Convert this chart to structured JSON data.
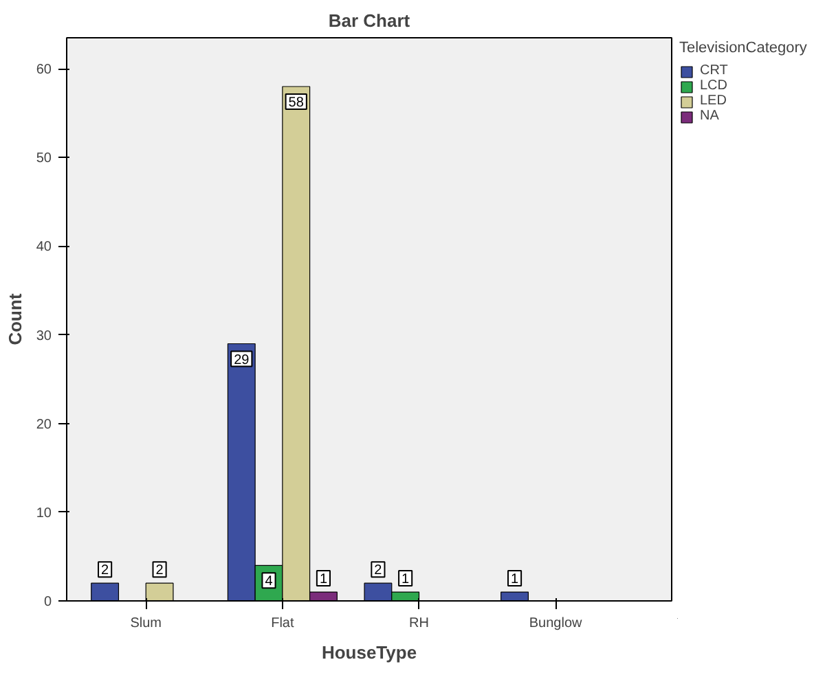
{
  "chart_data": {
    "type": "bar",
    "title": "Bar Chart",
    "xlabel": "HouseType",
    "ylabel": "Count",
    "legend_title": "TelevisionCategory",
    "categories": [
      "Slum",
      "Flat",
      "RH",
      "Bunglow"
    ],
    "series": [
      {
        "name": "CRT",
        "color": "#3d4fa0",
        "values": [
          2,
          29,
          2,
          1
        ]
      },
      {
        "name": "LCD",
        "color": "#2fa84f",
        "values": [
          null,
          4,
          1,
          null
        ]
      },
      {
        "name": "LED",
        "color": "#d3ce97",
        "values": [
          2,
          58,
          null,
          null
        ]
      },
      {
        "name": "NA",
        "color": "#7b2c7b",
        "values": [
          null,
          1,
          null,
          null
        ]
      }
    ],
    "ylim": [
      0,
      63.5
    ],
    "yticks": [
      0,
      10,
      20,
      30,
      40,
      50,
      60
    ],
    "data_labels": true,
    "legend": "top right",
    "grid": false
  }
}
